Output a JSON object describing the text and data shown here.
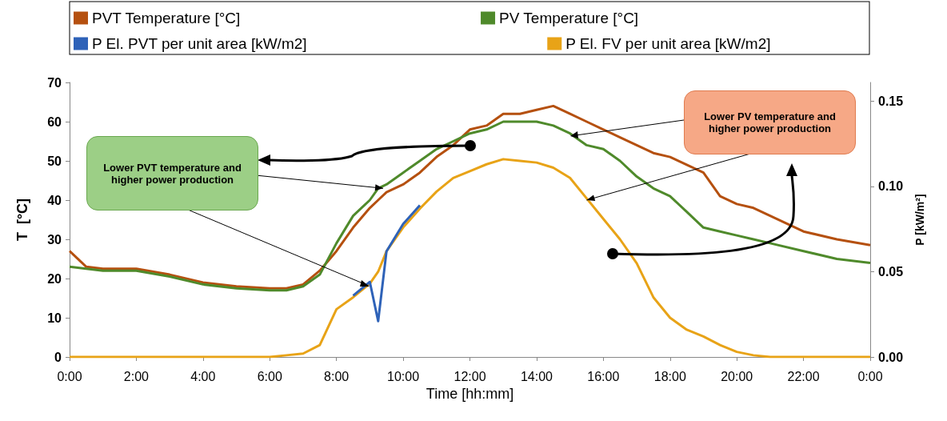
{
  "chart_data": {
    "type": "line",
    "xlabel": "Time [hh:mm]",
    "ylabel": "T  [°C]",
    "y2label": "P [kW/m²]",
    "x": [
      0,
      0.5,
      1,
      2,
      3,
      4,
      5,
      6,
      6.5,
      7,
      7.5,
      8,
      8.5,
      9,
      9.25,
      9.5,
      10,
      10.5,
      11,
      11.5,
      12,
      12.5,
      13,
      13.5,
      14,
      14.5,
      15,
      15.5,
      16,
      16.5,
      17,
      17.5,
      18,
      18.5,
      19,
      19.5,
      20,
      20.5,
      21,
      22,
      23,
      24
    ],
    "series": [
      {
        "name": "PVT Temperature [°C]",
        "color": "#b5500f",
        "values": [
          27,
          23,
          22.5,
          22.5,
          21,
          19,
          18,
          17.5,
          17.5,
          18.5,
          22,
          27,
          33,
          38,
          40,
          42,
          44,
          47,
          51,
          54,
          58,
          59,
          62,
          62,
          63,
          64,
          62,
          60,
          58,
          56,
          54,
          52,
          51,
          49,
          47,
          41,
          39,
          38,
          36,
          32,
          30,
          28.5
        ]
      },
      {
        "name": "PV Temperature [°C]",
        "color": "#4f8a2b",
        "values": [
          23,
          22.5,
          22,
          22,
          20.5,
          18.5,
          17.5,
          17,
          17,
          18,
          21,
          29,
          36,
          40,
          43,
          44,
          47,
          50,
          53,
          55,
          57,
          58,
          60,
          60,
          60,
          59,
          57,
          54,
          53,
          50,
          46,
          43,
          41,
          37,
          33,
          32,
          31,
          30,
          29,
          27,
          25,
          24
        ]
      },
      {
        "name": "P El. PVT per unit area [kW/m2]",
        "color": "#2e62b8",
        "axis": "y2",
        "values": [
          null,
          null,
          null,
          null,
          null,
          null,
          null,
          null,
          null,
          null,
          null,
          null,
          0.036,
          0.044,
          0.021,
          0.062,
          0.078,
          0.089,
          null,
          null,
          null,
          null,
          null,
          null,
          null,
          null,
          null,
          null,
          null,
          null,
          null,
          null,
          null,
          null,
          null,
          null,
          null,
          null,
          null,
          null,
          null,
          null
        ]
      },
      {
        "name": "P El. FV per unit area [kW/m2]",
        "color": "#e8a317",
        "axis": "y2",
        "values": [
          0,
          0,
          0,
          0,
          0,
          0,
          0,
          0,
          0.001,
          0.002,
          0.007,
          0.028,
          0.035,
          0.043,
          0.05,
          0.062,
          0.076,
          0.087,
          0.097,
          0.105,
          0.109,
          0.113,
          0.116,
          0.115,
          0.114,
          0.111,
          0.105,
          0.093,
          0.081,
          0.069,
          0.055,
          0.035,
          0.023,
          0.016,
          0.012,
          0.007,
          0.003,
          0.001,
          0,
          0,
          0,
          0
        ]
      }
    ],
    "xlim": [
      0,
      24
    ],
    "xticks": [
      {
        "value": 0,
        "label": "0:00"
      },
      {
        "value": 2,
        "label": "2:00"
      },
      {
        "value": 4,
        "label": "4:00"
      },
      {
        "value": 6,
        "label": "6:00"
      },
      {
        "value": 8,
        "label": "8:00"
      },
      {
        "value": 10,
        "label": "10:00"
      },
      {
        "value": 12,
        "label": "12:00"
      },
      {
        "value": 14,
        "label": "14:00"
      },
      {
        "value": 16,
        "label": "16:00"
      },
      {
        "value": 18,
        "label": "18:00"
      },
      {
        "value": 20,
        "label": "20:00"
      },
      {
        "value": 22,
        "label": "22:00"
      },
      {
        "value": 24,
        "label": "0:00"
      }
    ],
    "ylim": [
      0,
      70
    ],
    "yticks": [
      0,
      10,
      20,
      30,
      40,
      50,
      60,
      70
    ],
    "y2lim": [
      0,
      0.161
    ],
    "y2ticks": [
      {
        "value": 0,
        "label": "0.00"
      },
      {
        "value": 0.05,
        "label": "0.05"
      },
      {
        "value": 0.1,
        "label": "0.10"
      },
      {
        "value": 0.15,
        "label": "0.15"
      }
    ],
    "annotations": [
      {
        "text": "Lower PVT temperature and higher power production",
        "x": 9.4,
        "y": 43
      },
      {
        "text": "Lower PV temperature and higher power production",
        "x": 15.5,
        "y": 40
      }
    ],
    "legend": "top",
    "grid": false,
    "marker": "none",
    "line_style": "solid"
  }
}
